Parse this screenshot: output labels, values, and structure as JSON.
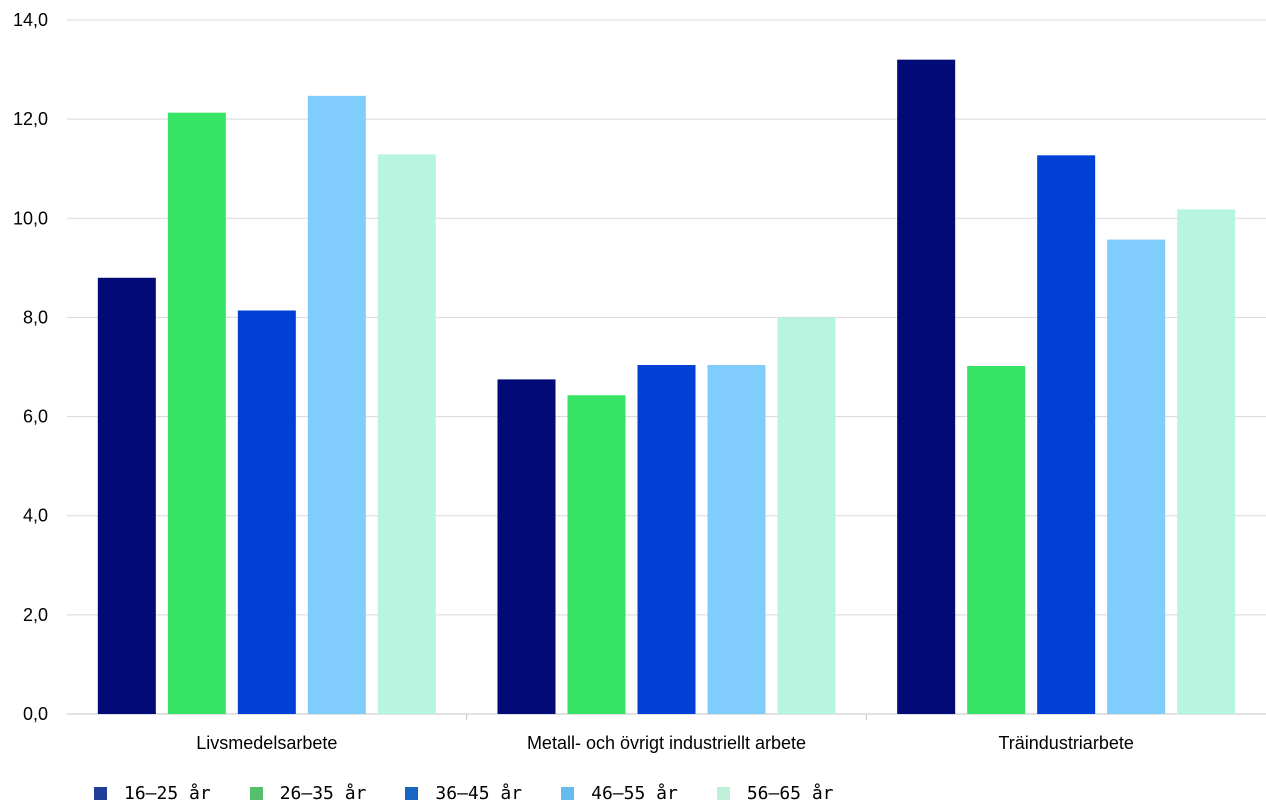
{
  "chart_data": {
    "type": "bar",
    "categories": [
      "Livsmedelsarbete",
      "Metall- och övrigt industriellt arbete",
      "Träindustriarbete"
    ],
    "series": [
      {
        "name": "16–25 år",
        "values": [
          8.8,
          6.75,
          13.2
        ],
        "color": "#020a78",
        "legend_color": "#1f3d99"
      },
      {
        "name": "26–35 år",
        "values": [
          12.13,
          6.43,
          7.02
        ],
        "color": "#36e364",
        "legend_color": "#55bf6b"
      },
      {
        "name": "36–45 år",
        "values": [
          8.14,
          7.04,
          11.27
        ],
        "color": "#0040d6",
        "legend_color": "#1866c2"
      },
      {
        "name": "46–55 år",
        "values": [
          12.47,
          7.04,
          9.57
        ],
        "color": "#80ccfc",
        "legend_color": "#66bbef"
      },
      {
        "name": "56–65 år",
        "values": [
          11.29,
          8.0,
          10.18
        ],
        "color": "#b8f5e0",
        "legend_color": "#bfeed9"
      }
    ],
    "ylim": [
      0,
      14
    ],
    "yticks": [
      "0,0",
      "2,0",
      "4,0",
      "6,0",
      "8,0",
      "10,0",
      "12,0",
      "14,0"
    ],
    "ytick_values": [
      0,
      2,
      4,
      6,
      8,
      10,
      12,
      14
    ],
    "grid": true,
    "legend_position": "bottom-left",
    "title": "",
    "xlabel": "",
    "ylabel": ""
  }
}
